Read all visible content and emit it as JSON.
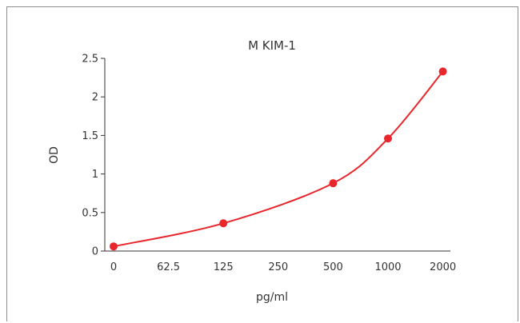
{
  "chart_data": {
    "type": "line",
    "title": "M  KIM-1",
    "xlabel": "pg/ml",
    "ylabel": "OD",
    "categories": [
      "0",
      "62.5",
      "125",
      "250",
      "500",
      "1000",
      "2000"
    ],
    "ylim": [
      0,
      2.5
    ],
    "yticks": [
      "0",
      "0.5",
      "1",
      "1.5",
      "2",
      "2.5"
    ],
    "grid": false,
    "legend": "none",
    "series": [
      {
        "color": "#e8262c",
        "points": [
          {
            "x": "0",
            "y": 0.06
          },
          {
            "x": "125",
            "y": 0.36
          },
          {
            "x": "500",
            "y": 0.88
          },
          {
            "x": "1000",
            "y": 1.46
          },
          {
            "x": "2000",
            "y": 2.33
          }
        ]
      }
    ]
  }
}
